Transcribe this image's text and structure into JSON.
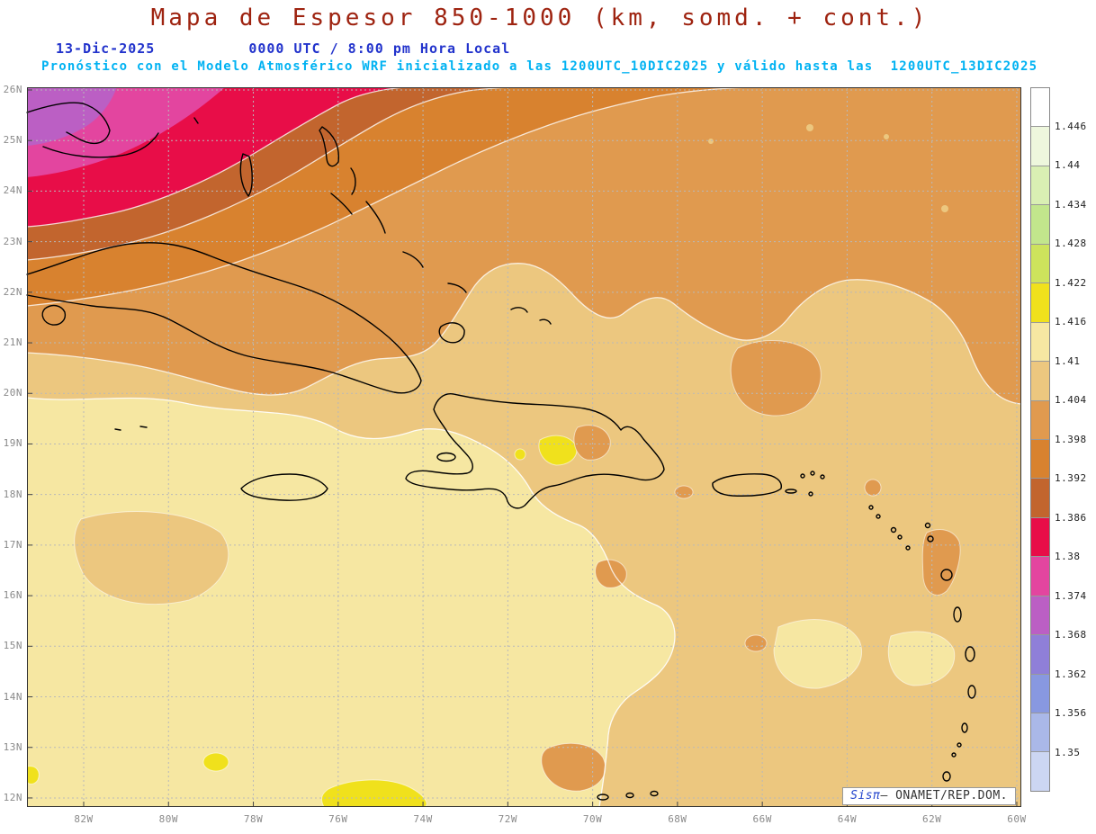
{
  "header": {
    "title": "Mapa de Espesor 850-1000 (km, somd. + cont.)",
    "date": "13-Dic-2025",
    "time": "0000 UTC / 8:00 pm Hora Local",
    "forecast": "Pronóstico con el Modelo Atmosférico WRF inicializado a las 1200UTC_10DIC2025 y válido hasta las  1200UTC_13DIC2025"
  },
  "map": {
    "lat_labels": [
      "26N",
      "25N",
      "24N",
      "23N",
      "22N",
      "21N",
      "20N",
      "19N",
      "18N",
      "17N",
      "16N",
      "15N",
      "14N",
      "13N",
      "12N"
    ],
    "lon_labels": [
      "82W",
      "80W",
      "78W",
      "76W",
      "74W",
      "72W",
      "70W",
      "68W",
      "66W",
      "64W",
      "62W",
      "60W"
    ]
  },
  "colorbar": {
    "boundary_labels": [
      "1.446",
      "1.44",
      "1.434",
      "1.428",
      "1.422",
      "1.416",
      "1.41",
      "1.404",
      "1.398",
      "1.392",
      "1.386",
      "1.38",
      "1.374",
      "1.368",
      "1.362",
      "1.356",
      "1.35"
    ],
    "colors": [
      "#ffffff",
      "#eef7dd",
      "#d9efb3",
      "#c2e68c",
      "#cde35c",
      "#f0e11c",
      "#f6e7a2",
      "#ecc77f",
      "#e09a4f",
      "#d8822f",
      "#c2652e",
      "#e80d48",
      "#e3459f",
      "#bb5fc4",
      "#8f7fd8",
      "#8898e0",
      "#aab8e8",
      "#ccd6f2"
    ]
  },
  "credit": {
    "app": "Sisπ",
    "text": "– ONAMET/REP.DOM."
  },
  "chart_data": {
    "type": "heatmap",
    "title": "Mapa de Espesor 850-1000 (km, somd. + cont.)",
    "field": "Espesor 850-1000 (km), sombreado + contornos",
    "valid": "13-Dic-2025 0000 UTC / 8:00 pm Hora Local",
    "model_run": "WRF inicializado a las 1200UTC_10DIC2025, válido hasta las 1200UTC_13DIC2025",
    "lat_range": [
      "12N",
      "26N"
    ],
    "lon_range": [
      "82W",
      "60W"
    ],
    "scale_values": [
      1.35,
      1.356,
      1.362,
      1.368,
      1.374,
      1.38,
      1.386,
      1.392,
      1.398,
      1.404,
      1.41,
      1.416,
      1.422,
      1.428,
      1.434,
      1.44,
      1.446
    ],
    "scale_unit": "km",
    "pattern": "valores bajos (1.38-1.392, rojos/naranjas oscuros) al noroeste sobre Florida/Bahamas; 1.398-1.41 (naranja/beige) en el centro; 1.41-1.422 (amarillos) al suroeste del Caribe"
  }
}
